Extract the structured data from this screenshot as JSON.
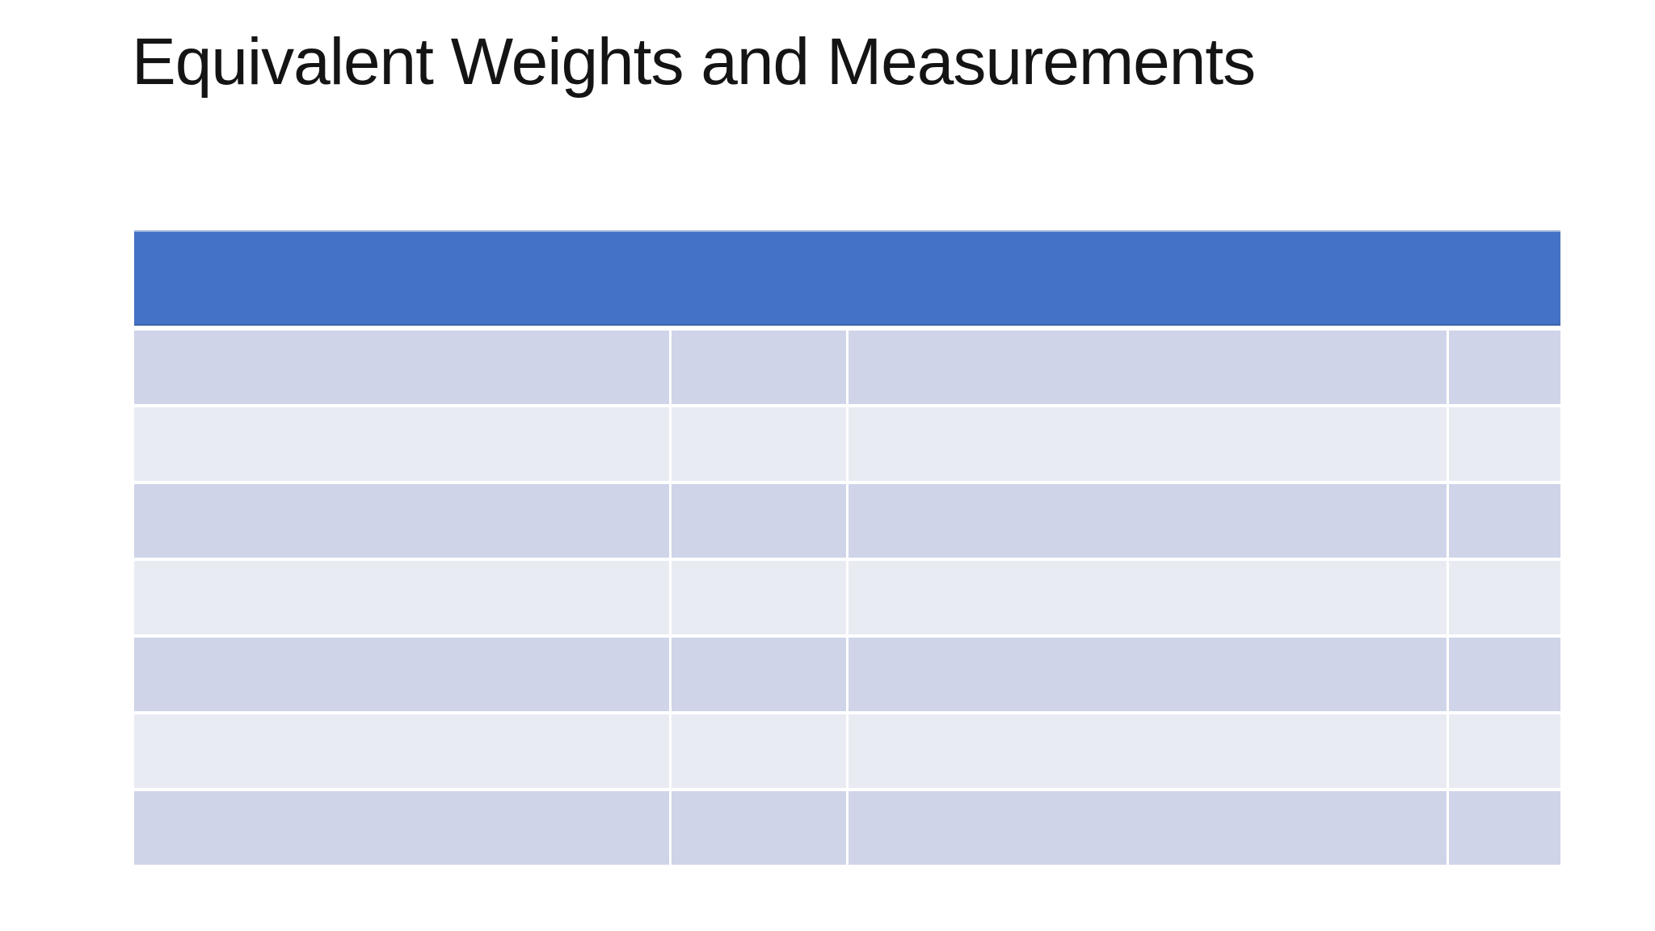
{
  "slide": {
    "title": "Equivalent Weights and Measurements"
  },
  "table": {
    "header": {
      "label": ""
    },
    "columns": [
      "",
      "",
      "",
      ""
    ],
    "rows": [
      [
        "",
        "",
        "",
        ""
      ],
      [
        "",
        "",
        "",
        ""
      ],
      [
        "",
        "",
        "",
        ""
      ],
      [
        "",
        "",
        "",
        ""
      ],
      [
        "",
        "",
        "",
        ""
      ],
      [
        "",
        "",
        "",
        ""
      ],
      [
        "",
        "",
        "",
        ""
      ]
    ]
  },
  "colors": {
    "background": "#FFFFFF",
    "title_text": "#141414",
    "header_blue": "#4472C4",
    "band_dark": "#CFD4E8",
    "band_light": "#E9EBF3"
  }
}
